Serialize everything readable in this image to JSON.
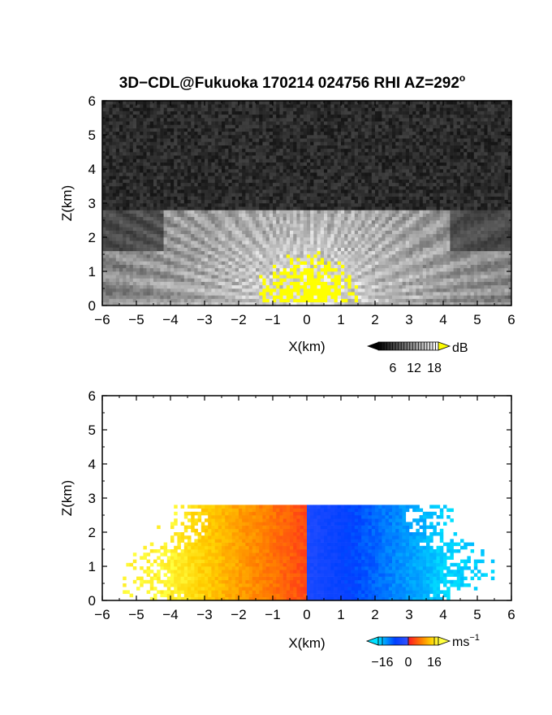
{
  "title": "3D−CDL@Fukuoka 170214 024756 RHI AZ=292",
  "title_superscript": "o",
  "chart_data": [
    {
      "type": "heatmap",
      "quantity": "backscatter intensity",
      "xlabel": "X(km)",
      "ylabel": "Z(km)",
      "xlim": [
        -6,
        6
      ],
      "ylim": [
        0,
        6
      ],
      "x_ticks": [
        -6,
        -5,
        -4,
        -3,
        -2,
        -1,
        0,
        1,
        2,
        3,
        4,
        5,
        6
      ],
      "y_ticks": [
        0,
        1,
        2,
        3,
        4,
        5,
        6
      ],
      "signal_top_km": 2.8,
      "colorbar": {
        "unit": "dB",
        "ticks": [
          "6",
          "12",
          "18"
        ],
        "range": [
          0,
          21
        ],
        "colors": {
          "low": "#000000",
          "high": "#ffffff",
          "over": "#ffff00"
        }
      }
    },
    {
      "type": "heatmap",
      "quantity": "radial velocity",
      "xlabel": "X(km)",
      "ylabel": "Z(km)",
      "xlim": [
        -6,
        6
      ],
      "ylim": [
        0,
        6
      ],
      "x_ticks": [
        -6,
        -5,
        -4,
        -3,
        -2,
        -1,
        0,
        1,
        2,
        3,
        4,
        5,
        6
      ],
      "y_ticks": [
        0,
        1,
        2,
        3,
        4,
        5,
        6
      ],
      "signal_top_km": 2.8,
      "colorbar": {
        "unit": "ms",
        "unit_superscript": "−1",
        "ticks": [
          "−16",
          "0",
          "16"
        ],
        "range": [
          -20,
          20
        ],
        "colors": [
          "#00e0ff",
          "#0040ff",
          "#3050ff",
          "#ff2020",
          "#ff8000",
          "#ffd000",
          "#ffff40"
        ]
      }
    }
  ]
}
